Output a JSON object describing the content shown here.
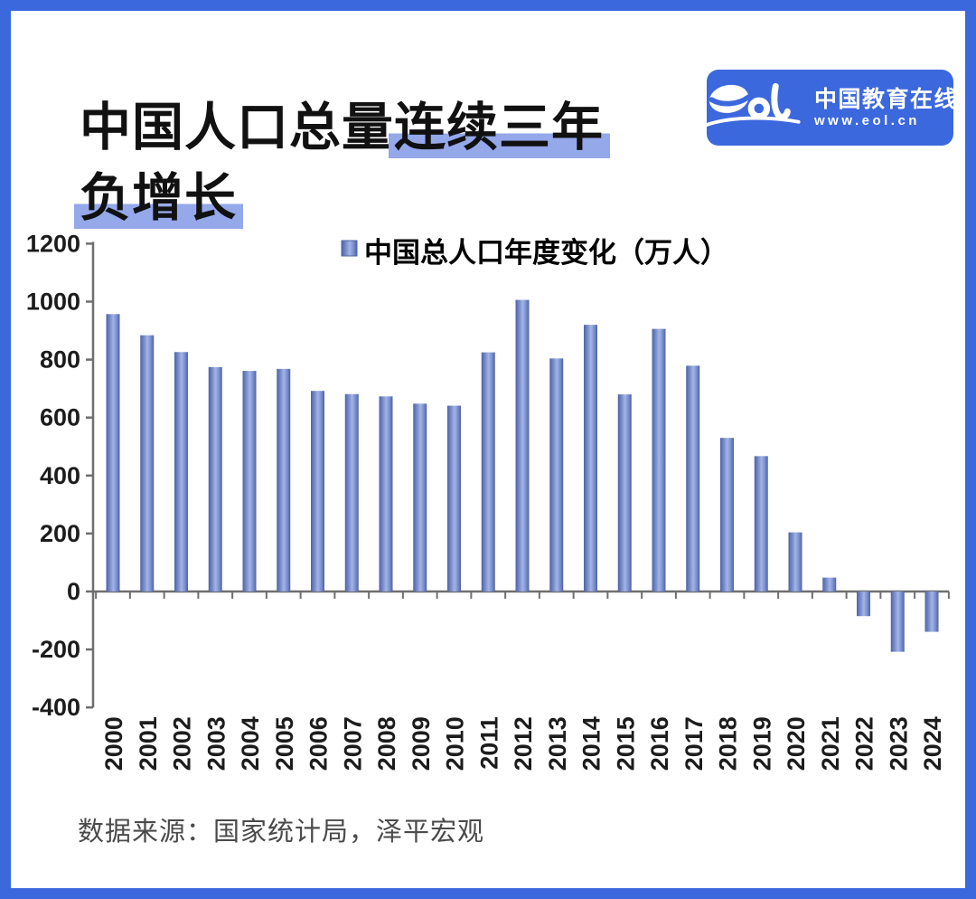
{
  "colors": {
    "accent": "#3C68DE",
    "highlight": "#94A8EA",
    "bar_edge": "#4E63A4",
    "bar_mid": "#A3B4E6",
    "bar_main": "#7E93CF",
    "axis": "#6F6F6F",
    "tick_label": "#1c1c1c",
    "source_text": "#4a4a4a"
  },
  "header": {
    "title_line1_normal": "中国人口总量",
    "title_line1_highlight": "连续三年",
    "title_line2_highlight": "负增长"
  },
  "logo": {
    "script": "eol",
    "name": "中国教育在线",
    "url": "www.eol.cn"
  },
  "footer": {
    "source_note": "数据来源：国家统计局，泽平宏观"
  },
  "chart_data": {
    "type": "bar",
    "title": "",
    "legend": "中国总人口年度变化（万人）",
    "legend_position": "top-center",
    "xlabel": "",
    "ylabel": "",
    "grid": false,
    "ylim": [
      -400,
      1200
    ],
    "yticks": [
      1200,
      1000,
      800,
      600,
      400,
      200,
      0,
      -200,
      -400
    ],
    "categories": [
      "2000",
      "2001",
      "2002",
      "2003",
      "2004",
      "2005",
      "2006",
      "2007",
      "2008",
      "2009",
      "2010",
      "2011",
      "2012",
      "2013",
      "2014",
      "2015",
      "2016",
      "2017",
      "2018",
      "2019",
      "2020",
      "2021",
      "2022",
      "2023",
      "2024"
    ],
    "values": [
      957,
      884,
      826,
      774,
      761,
      768,
      692,
      681,
      673,
      648,
      641,
      825,
      1006,
      804,
      920,
      680,
      906,
      779,
      530,
      467,
      204,
      48,
      -85,
      -208,
      -139
    ]
  }
}
